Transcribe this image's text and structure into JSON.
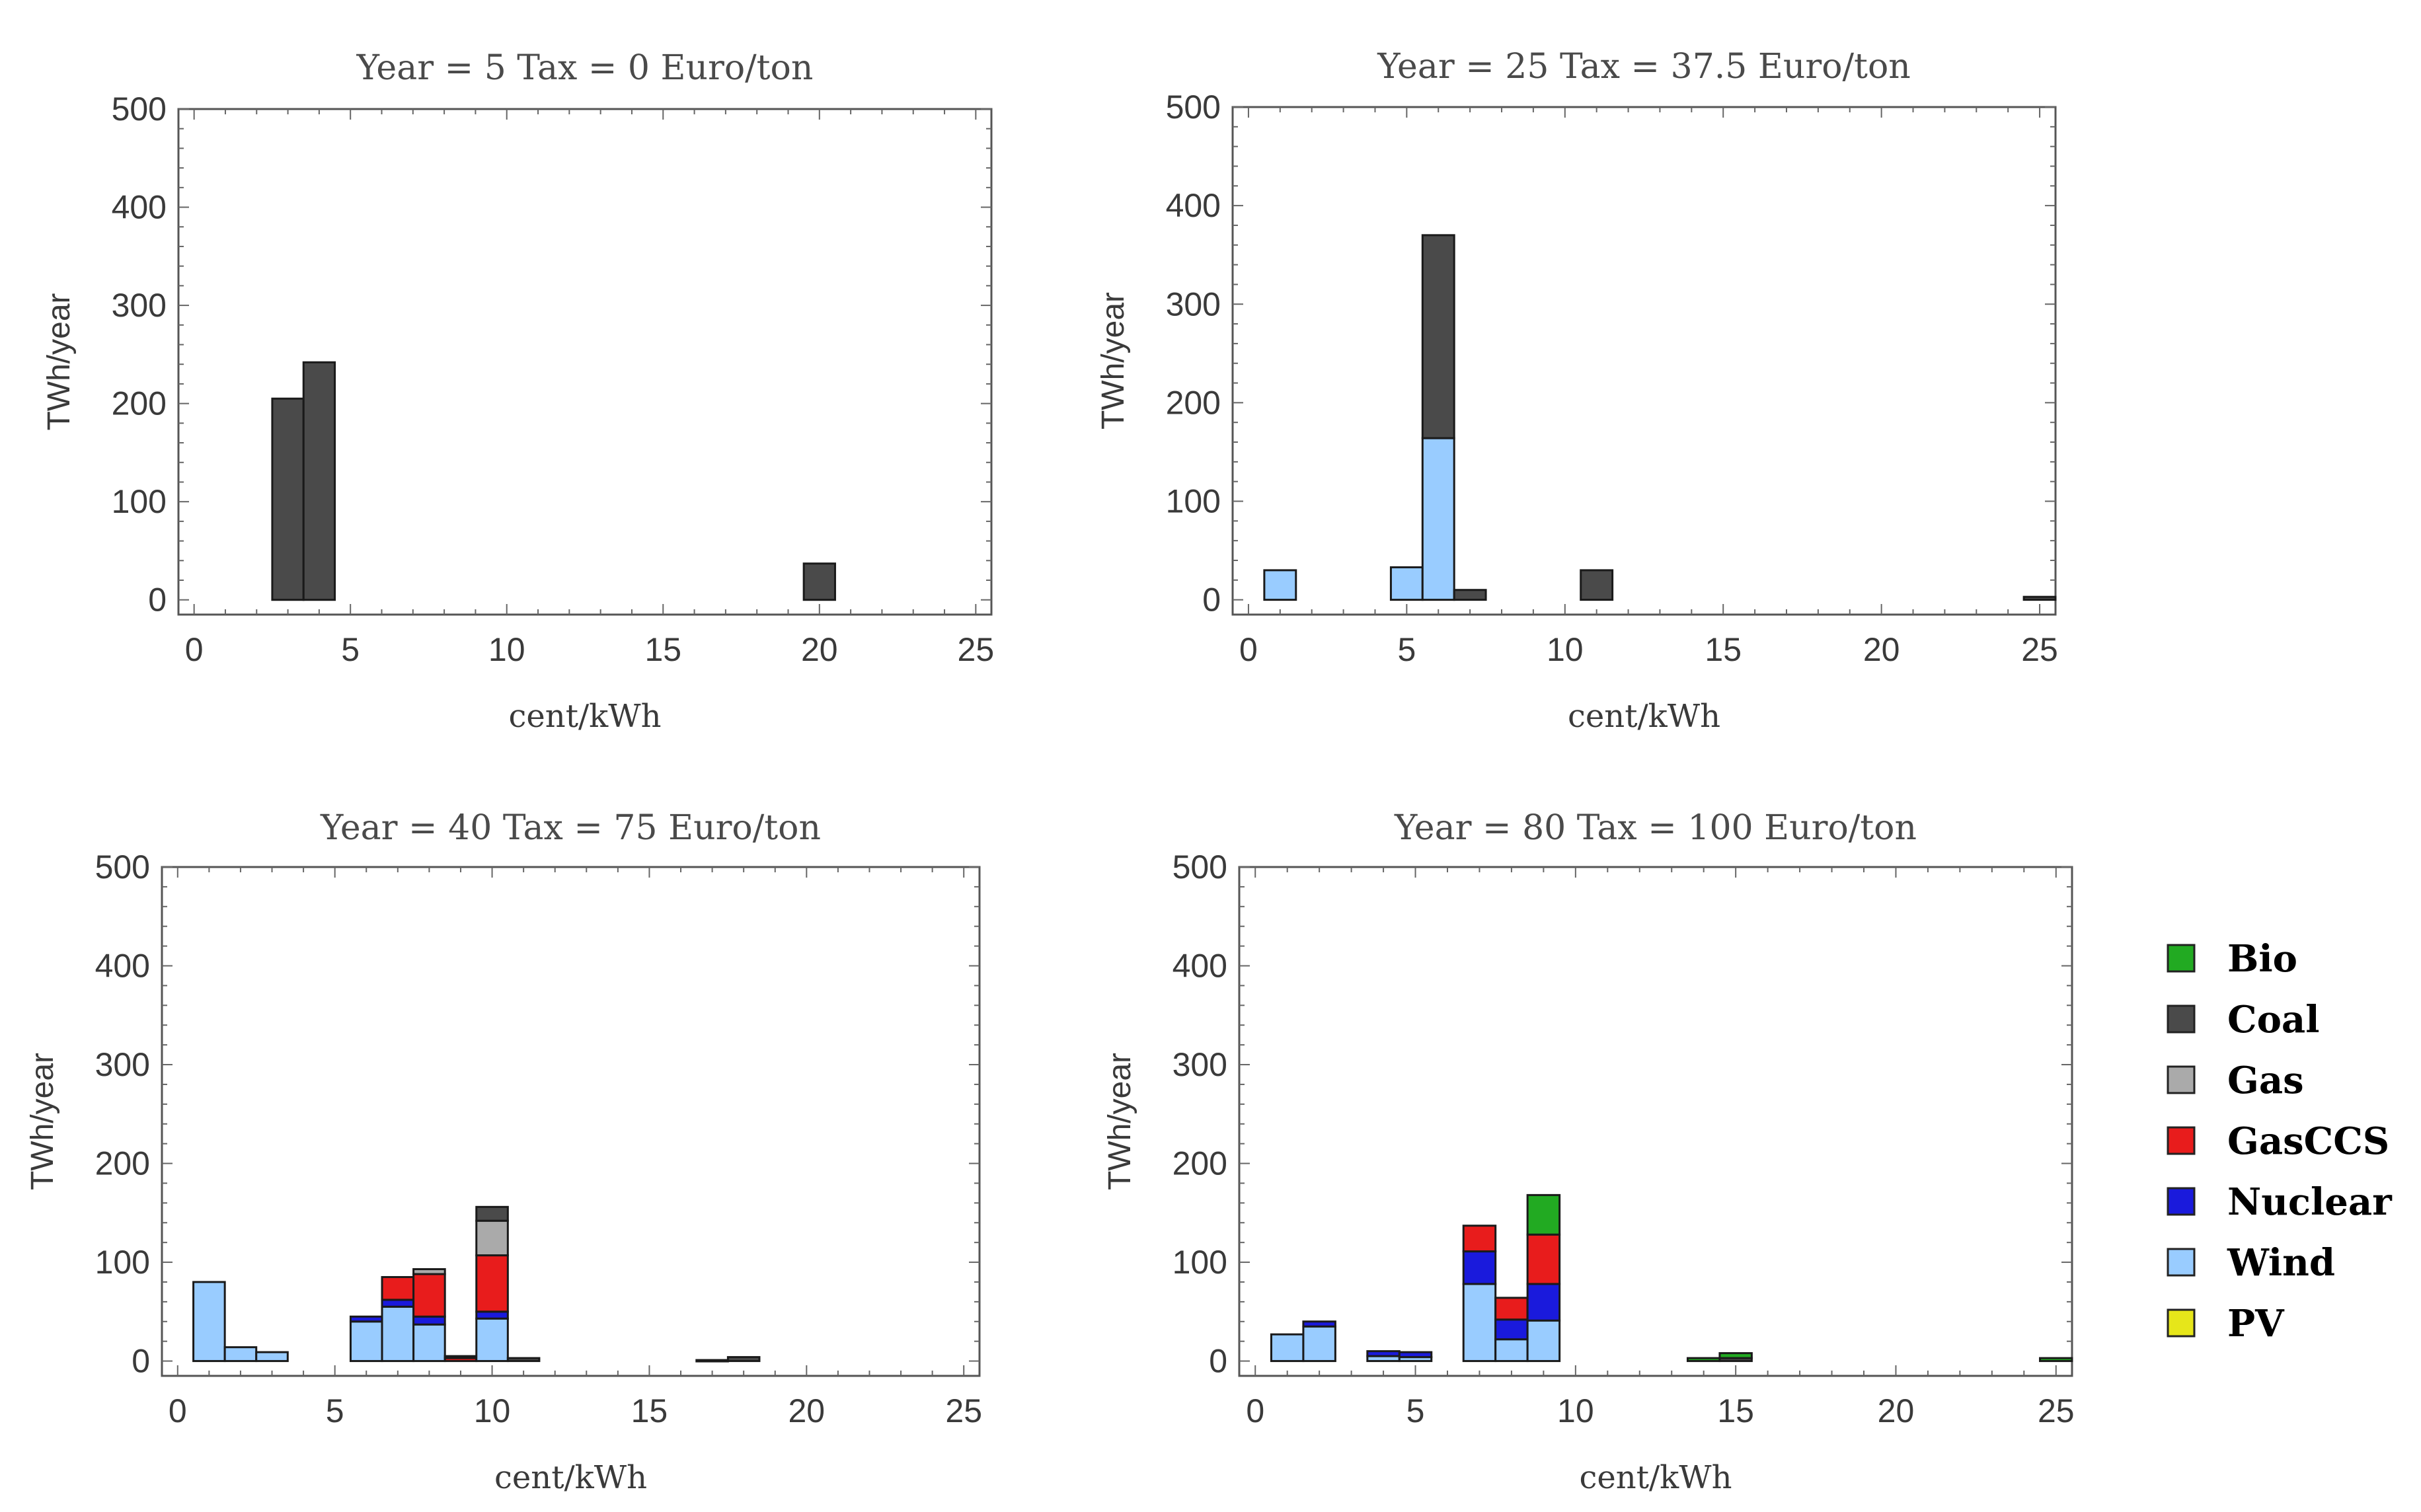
{
  "colors": {
    "Bio": "#22aa22",
    "Coal": "#4a4a4a",
    "Gas": "#aaaaaa",
    "GasCCS": "#e81c1c",
    "Nuclear": "#1a1adc",
    "Wind": "#99ccff",
    "PV": "#e6e61a"
  },
  "legend": [
    "Bio",
    "Coal",
    "Gas",
    "GasCCS",
    "Nuclear",
    "Wind",
    "PV"
  ],
  "chart_data": [
    {
      "type": "bar",
      "stacked": true,
      "title": "Year = 5     Tax = 0 Euro/ton",
      "xlabel": "cent/kWh",
      "ylabel": "TWh/year",
      "xlim": [
        -0.5,
        25.5
      ],
      "ylim": [
        -15,
        500
      ],
      "xticks": [
        0,
        5,
        10,
        15,
        20,
        25
      ],
      "yticks": [
        0,
        100,
        200,
        300,
        400,
        500
      ],
      "bars": [
        {
          "x": 3,
          "stack": {
            "Coal": 205
          }
        },
        {
          "x": 4,
          "stack": {
            "Coal": 242
          }
        },
        {
          "x": 20,
          "stack": {
            "Coal": 37
          }
        }
      ]
    },
    {
      "type": "bar",
      "stacked": true,
      "title": "Year = 25     Tax = 37.5 Euro/ton",
      "xlabel": "cent/kWh",
      "ylabel": "TWh/year",
      "xlim": [
        -0.5,
        25.5
      ],
      "ylim": [
        -15,
        500
      ],
      "xticks": [
        0,
        5,
        10,
        15,
        20,
        25
      ],
      "yticks": [
        0,
        100,
        200,
        300,
        400,
        500
      ],
      "bars": [
        {
          "x": 1,
          "stack": {
            "Wind": 30
          }
        },
        {
          "x": 5,
          "stack": {
            "Wind": 33
          }
        },
        {
          "x": 6,
          "stack": {
            "Wind": 164,
            "Coal": 206
          }
        },
        {
          "x": 7,
          "stack": {
            "Coal": 10
          }
        },
        {
          "x": 11,
          "stack": {
            "Coal": 30
          }
        },
        {
          "x": 25,
          "stack": {
            "Coal": 3
          }
        }
      ]
    },
    {
      "type": "bar",
      "stacked": true,
      "title": "Year = 40     Tax = 75 Euro/ton",
      "xlabel": "cent/kWh",
      "ylabel": "TWh/year",
      "xlim": [
        -0.5,
        25.5
      ],
      "ylim": [
        -15,
        500
      ],
      "xticks": [
        0,
        5,
        10,
        15,
        20,
        25
      ],
      "yticks": [
        0,
        100,
        200,
        300,
        400,
        500
      ],
      "bars": [
        {
          "x": 1,
          "stack": {
            "Wind": 80
          }
        },
        {
          "x": 2,
          "stack": {
            "Wind": 14
          }
        },
        {
          "x": 3,
          "stack": {
            "Wind": 9
          }
        },
        {
          "x": 6,
          "stack": {
            "Wind": 40,
            "Nuclear": 5
          }
        },
        {
          "x": 7,
          "stack": {
            "Wind": 55,
            "Nuclear": 7,
            "GasCCS": 23
          }
        },
        {
          "x": 8,
          "stack": {
            "Wind": 37,
            "Nuclear": 8,
            "GasCCS": 43,
            "Gas": 5
          }
        },
        {
          "x": 9,
          "stack": {
            "GasCCS": 3,
            "Coal": 2
          }
        },
        {
          "x": 10,
          "stack": {
            "Wind": 43,
            "Nuclear": 7,
            "GasCCS": 57,
            "Gas": 35,
            "Coal": 14
          }
        },
        {
          "x": 11,
          "stack": {
            "Coal": 3
          }
        },
        {
          "x": 17,
          "stack": {
            "Coal": 1
          }
        },
        {
          "x": 18,
          "stack": {
            "Coal": 4
          }
        }
      ]
    },
    {
      "type": "bar",
      "stacked": true,
      "title": "Year = 80     Tax = 100 Euro/ton",
      "xlabel": "cent/kWh",
      "ylabel": "TWh/year",
      "xlim": [
        -0.5,
        25.5
      ],
      "ylim": [
        -15,
        500
      ],
      "xticks": [
        0,
        5,
        10,
        15,
        20,
        25
      ],
      "yticks": [
        0,
        100,
        200,
        300,
        400,
        500
      ],
      "bars": [
        {
          "x": 1,
          "stack": {
            "Wind": 27
          }
        },
        {
          "x": 2,
          "stack": {
            "Wind": 35,
            "Nuclear": 5
          }
        },
        {
          "x": 4,
          "stack": {
            "Wind": 5,
            "Nuclear": 5
          }
        },
        {
          "x": 5,
          "stack": {
            "Wind": 4,
            "Nuclear": 5
          }
        },
        {
          "x": 7,
          "stack": {
            "Wind": 78,
            "Nuclear": 33,
            "GasCCS": 26
          }
        },
        {
          "x": 8,
          "stack": {
            "Wind": 22,
            "Nuclear": 20,
            "GasCCS": 22
          }
        },
        {
          "x": 9,
          "stack": {
            "Wind": 41,
            "Nuclear": 37,
            "GasCCS": 50,
            "Bio": 40
          }
        },
        {
          "x": 14,
          "stack": {
            "Bio": 3
          }
        },
        {
          "x": 15,
          "stack": {
            "Bio": 5,
            "Coal": 3
          }
        },
        {
          "x": 25,
          "stack": {
            "Bio": 3
          }
        }
      ]
    }
  ]
}
